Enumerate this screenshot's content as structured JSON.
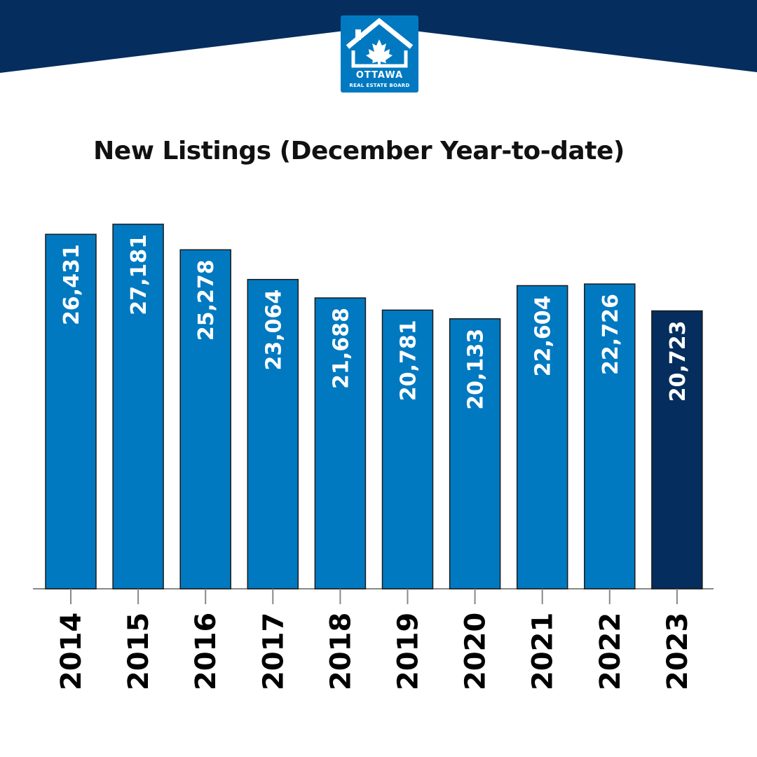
{
  "logo": {
    "name": "OTTAWA",
    "subtitle": "REAL ESTATE BOARD",
    "colors": {
      "logo_bg": "#0079c1",
      "banner": "#052d5e"
    }
  },
  "chart_data": {
    "type": "bar",
    "title": "New Listings (December Year-to-date)",
    "categories": [
      "2014",
      "2015",
      "2016",
      "2017",
      "2018",
      "2019",
      "2020",
      "2021",
      "2022",
      "2023"
    ],
    "values": [
      26431,
      27181,
      25278,
      23064,
      21688,
      20781,
      20133,
      22604,
      22726,
      20723
    ],
    "value_labels": [
      "26,431",
      "27,181",
      "25,278",
      "23,064",
      "21,688",
      "20,781",
      "20,133",
      "22,604",
      "22,726",
      "20,723"
    ],
    "ylim": [
      0,
      27700
    ],
    "colors": {
      "bar": "#0079c1",
      "highlight": "#052d5e",
      "axis": "#888888"
    },
    "highlight_index": 9,
    "grid": false,
    "legend": "none"
  }
}
